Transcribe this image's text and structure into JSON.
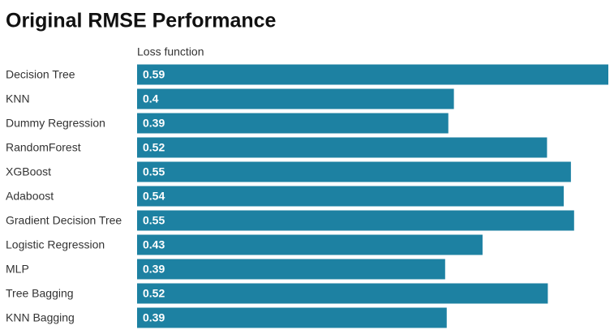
{
  "chart_data": {
    "type": "bar",
    "orientation": "horizontal",
    "title": "Original RMSE Performance",
    "value_header": "Loss function",
    "categories": [
      "Decision Tree",
      "KNN",
      "Dummy Regression",
      "RandomForest",
      "XGBoost",
      "Adaboost",
      "Gradient Decision Tree",
      "Logistic Regression",
      "MLP",
      "Tree Bagging",
      "KNN Bagging"
    ],
    "values": [
      0.592,
      0.398,
      0.391,
      0.515,
      0.545,
      0.536,
      0.549,
      0.434,
      0.387,
      0.516,
      0.389
    ],
    "value_labels": [
      "0.59",
      "0.4",
      "0.39",
      "0.52",
      "0.55",
      "0.54",
      "0.55",
      "0.43",
      "0.39",
      "0.52",
      "0.39"
    ],
    "color": "#1d81a2",
    "xlim": [
      0,
      0.592
    ]
  }
}
